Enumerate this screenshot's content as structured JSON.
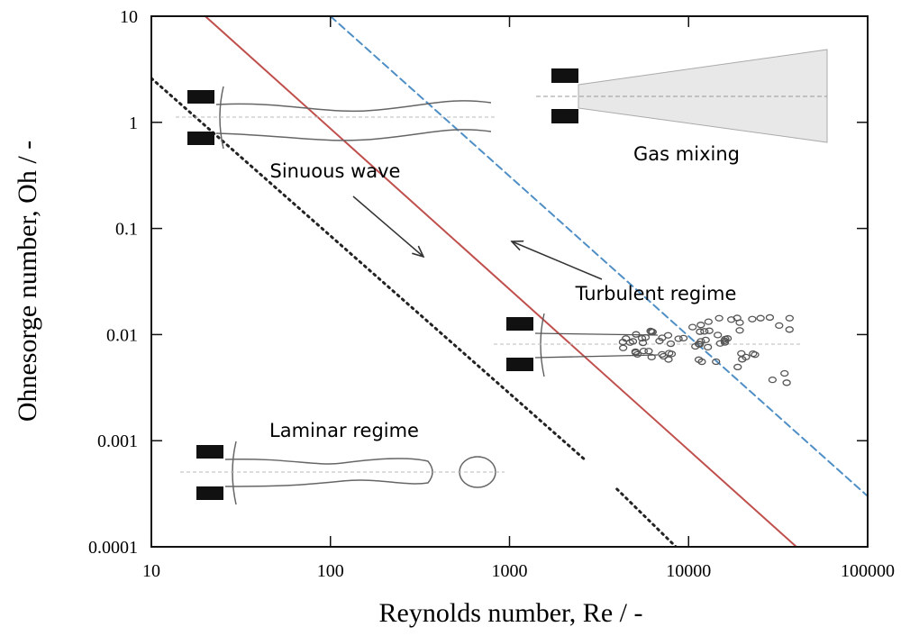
{
  "chart_data": {
    "type": "line",
    "xlabel": "Reynolds number, Re / -",
    "ylabel": "Ohnesorge number, Oh / -",
    "xscale": "log",
    "yscale": "log",
    "xlim": [
      10,
      100000
    ],
    "ylim": [
      0.0001,
      10
    ],
    "xticks": [
      10,
      100,
      1000,
      10000,
      100000
    ],
    "yticks": [
      0.0001,
      0.001,
      0.01,
      0.1,
      1,
      10
    ],
    "series": [
      {
        "color": "#c0504d",
        "style": "solid",
        "x": [
          20,
          40000
        ],
        "values": [
          10,
          0.0001
        ]
      },
      {
        "color": "#4f8fc6",
        "style": "dashed",
        "x": [
          100,
          100000
        ],
        "values": [
          10,
          0.0003
        ]
      },
      {
        "color": "#222222",
        "style": "dotted",
        "x": [
          10,
          2640
        ],
        "values": [
          2.6,
          0.00066
        ]
      },
      {
        "color": "#222222",
        "style": "dotted",
        "x": [
          3980,
          8500
        ],
        "values": [
          0.00035,
          0.0001
        ]
      }
    ],
    "annotations": [
      "Sinuous wave",
      "Gas mixing",
      "Turbulent regime",
      "Laminar regime"
    ]
  }
}
